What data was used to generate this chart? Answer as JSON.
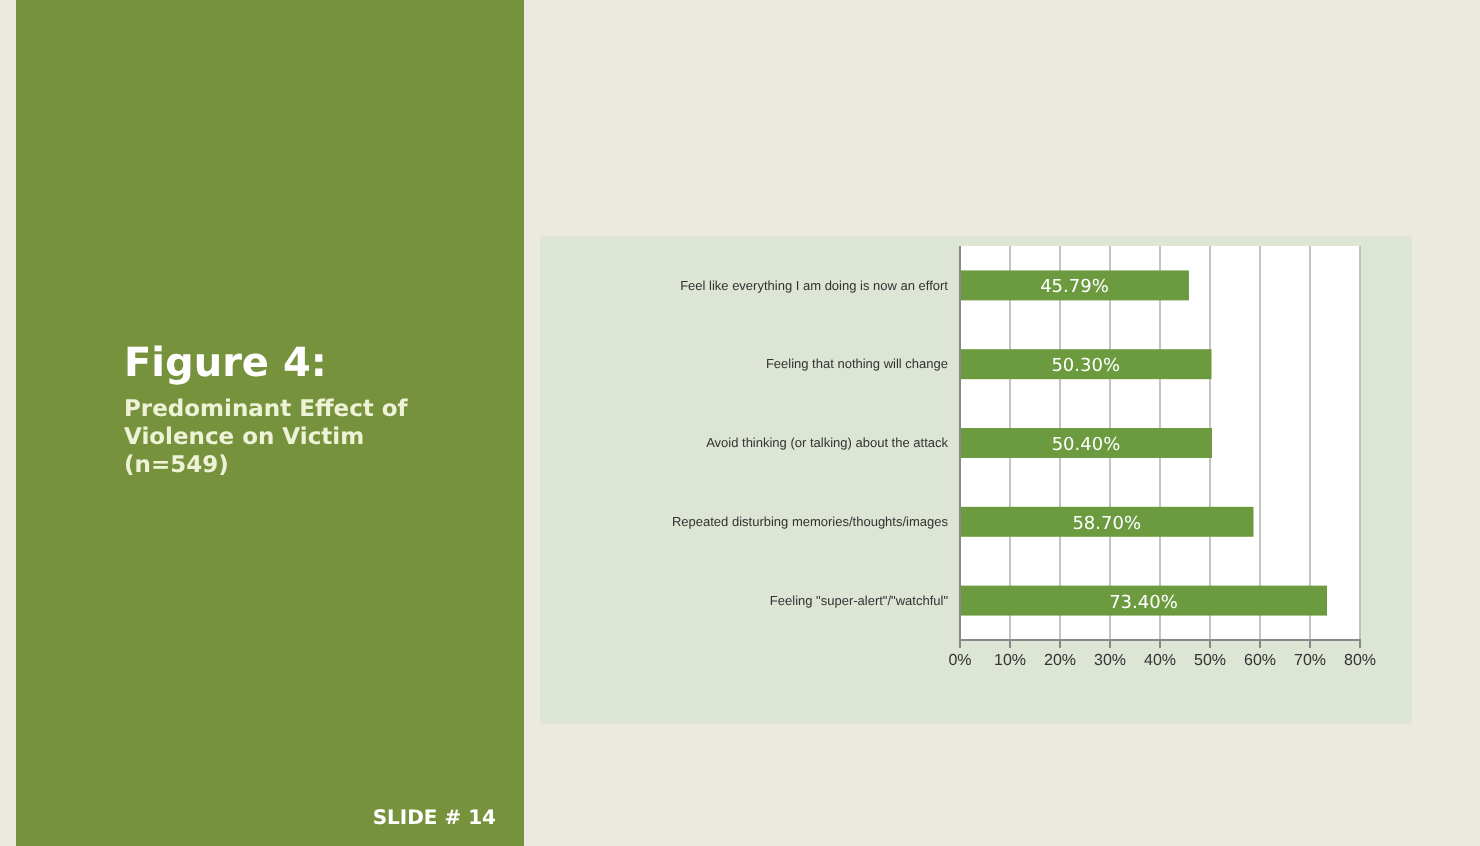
{
  "chart_data": {
    "type": "bar",
    "orientation": "horizontal",
    "title": "Figure 4:",
    "subtitle": "Predominant Effect of Violence on Victim (n=549)",
    "annotations": [
      "SLIDE # 14"
    ],
    "categories": [
      "Feel like everything I am doing is now an effort",
      "Feeling that nothing will change",
      "Avoid thinking (or talking) about the attack",
      "Repeated disturbing memories/thoughts/images",
      "Feeling \"super-alert\"/\"watchful\""
    ],
    "values": [
      45.79,
      50.3,
      50.4,
      58.7,
      73.4
    ],
    "value_labels": [
      "45.79%",
      "50.30%",
      "50.40%",
      "58.70%",
      "73.40%"
    ],
    "color": "#6b9a3f",
    "xlim": [
      0,
      80
    ],
    "xticks": [
      {
        "value": 0,
        "label": "0%"
      },
      {
        "value": 10,
        "label": "10%"
      },
      {
        "value": 20,
        "label": "20%"
      },
      {
        "value": 30,
        "label": "30%"
      },
      {
        "value": 40,
        "label": "40%"
      },
      {
        "value": 50,
        "label": "50%"
      },
      {
        "value": 60,
        "label": "60%"
      },
      {
        "value": 70,
        "label": "70%"
      },
      {
        "value": 80,
        "label": "80%"
      }
    ],
    "grid": "x"
  }
}
